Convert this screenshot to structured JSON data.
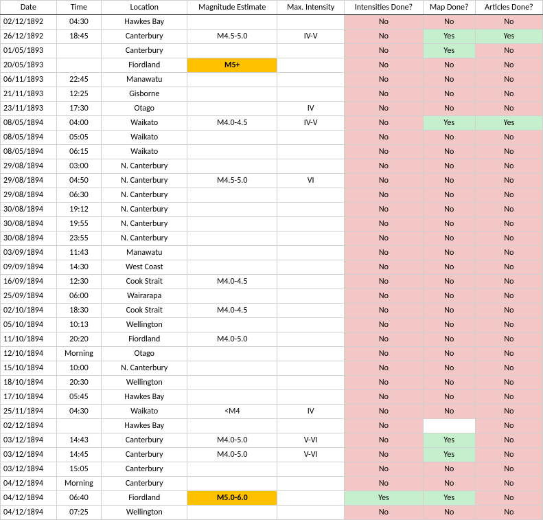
{
  "colors": {
    "no_bg": "#f4c7c7",
    "yes_bg": "#c6efce",
    "highlight_bg": "#ffc000",
    "grid": "#d0d0d0",
    "header_border": "#000000",
    "text": "#000000",
    "background": "#ffffff"
  },
  "headers": {
    "date": "Date",
    "time": "Time",
    "location": "Location",
    "magnitude": "Magnitude Estimate",
    "intensity": "Max. Intensity",
    "int_done": "Intensities Done?",
    "map_done": "Map Done?",
    "art_done": "Articles Done?"
  },
  "yes_label": "Yes",
  "no_label": "No",
  "rows": [
    {
      "date": "02/12/1892",
      "time": "04:30",
      "location": "Hawkes Bay",
      "mag": "",
      "mag_hl": false,
      "int": "",
      "int_done": "No",
      "map_done": "No",
      "art_done": "No",
      "sep": false
    },
    {
      "date": "26/12/1892",
      "time": "18:45",
      "location": "Canterbury",
      "mag": "M4.5-5.0",
      "mag_hl": false,
      "int": "IV-V",
      "int_done": "No",
      "map_done": "Yes",
      "art_done": "Yes",
      "sep": true
    },
    {
      "date": "01/05/1893",
      "time": "",
      "location": "Canterbury",
      "mag": "",
      "mag_hl": false,
      "int": "",
      "int_done": "No",
      "map_done": "Yes",
      "art_done": "No",
      "sep": false
    },
    {
      "date": "20/05/1893",
      "time": "",
      "location": "Fiordland",
      "mag": "M5+",
      "mag_hl": true,
      "int": "",
      "int_done": "No",
      "map_done": "No",
      "art_done": "No",
      "sep": true
    },
    {
      "date": "06/11/1893",
      "time": "22:45",
      "location": "Manawatu",
      "mag": "",
      "mag_hl": false,
      "int": "",
      "int_done": "No",
      "map_done": "No",
      "art_done": "No",
      "sep": false
    },
    {
      "date": "21/11/1893",
      "time": "12:25",
      "location": "Gisborne",
      "mag": "",
      "mag_hl": false,
      "int": "",
      "int_done": "No",
      "map_done": "No",
      "art_done": "No",
      "sep": false
    },
    {
      "date": "23/11/1893",
      "time": "17:30",
      "location": "Otago",
      "mag": "",
      "mag_hl": false,
      "int": "IV",
      "int_done": "No",
      "map_done": "No",
      "art_done": "No",
      "sep": true
    },
    {
      "date": "08/05/1894",
      "time": "04:00",
      "location": "Waikato",
      "mag": "M4.0-4.5",
      "mag_hl": false,
      "int": "IV-V",
      "int_done": "No",
      "map_done": "Yes",
      "art_done": "Yes",
      "sep": false
    },
    {
      "date": "08/05/1894",
      "time": "05:05",
      "location": "Waikato",
      "mag": "",
      "mag_hl": false,
      "int": "",
      "int_done": "No",
      "map_done": "No",
      "art_done": "No",
      "sep": false
    },
    {
      "date": "08/05/1894",
      "time": "06:15",
      "location": "Waikato",
      "mag": "",
      "mag_hl": false,
      "int": "",
      "int_done": "No",
      "map_done": "No",
      "art_done": "No",
      "sep": false
    },
    {
      "date": "29/08/1894",
      "time": "03:00",
      "location": "N. Canterbury",
      "mag": "",
      "mag_hl": false,
      "int": "",
      "int_done": "No",
      "map_done": "No",
      "art_done": "No",
      "sep": false
    },
    {
      "date": "29/08/1894",
      "time": "04:50",
      "location": "N. Canterbury",
      "mag": "M4.5-5.0",
      "mag_hl": false,
      "int": "VI",
      "int_done": "No",
      "map_done": "No",
      "art_done": "No",
      "sep": false
    },
    {
      "date": "29/08/1894",
      "time": "06:30",
      "location": "N. Canterbury",
      "mag": "",
      "mag_hl": false,
      "int": "",
      "int_done": "No",
      "map_done": "No",
      "art_done": "No",
      "sep": false
    },
    {
      "date": "30/08/1894",
      "time": "19:12",
      "location": "N. Canterbury",
      "mag": "",
      "mag_hl": false,
      "int": "",
      "int_done": "No",
      "map_done": "No",
      "art_done": "No",
      "sep": false
    },
    {
      "date": "30/08/1894",
      "time": "19:55",
      "location": "N. Canterbury",
      "mag": "",
      "mag_hl": false,
      "int": "",
      "int_done": "No",
      "map_done": "No",
      "art_done": "No",
      "sep": false
    },
    {
      "date": "30/08/1894",
      "time": "23:55",
      "location": "N. Canterbury",
      "mag": "",
      "mag_hl": false,
      "int": "",
      "int_done": "No",
      "map_done": "No",
      "art_done": "No",
      "sep": false
    },
    {
      "date": "03/09/1894",
      "time": "11:43",
      "location": "Manawatu",
      "mag": "",
      "mag_hl": false,
      "int": "",
      "int_done": "No",
      "map_done": "No",
      "art_done": "No",
      "sep": false
    },
    {
      "date": "09/09/1894",
      "time": "14:30",
      "location": "West Coast",
      "mag": "",
      "mag_hl": false,
      "int": "",
      "int_done": "No",
      "map_done": "No",
      "art_done": "No",
      "sep": false
    },
    {
      "date": "16/09/1894",
      "time": "12:30",
      "location": "Cook Strait",
      "mag": "M4.0-4.5",
      "mag_hl": false,
      "int": "",
      "int_done": "No",
      "map_done": "No",
      "art_done": "No",
      "sep": false
    },
    {
      "date": "25/09/1894",
      "time": "06:00",
      "location": "Wairarapa",
      "mag": "",
      "mag_hl": false,
      "int": "",
      "int_done": "No",
      "map_done": "No",
      "art_done": "No",
      "sep": false
    },
    {
      "date": "02/10/1894",
      "time": "18:30",
      "location": "Cook Strait",
      "mag": "M4.0-4.5",
      "mag_hl": false,
      "int": "",
      "int_done": "No",
      "map_done": "No",
      "art_done": "No",
      "sep": false
    },
    {
      "date": "05/10/1894",
      "time": "10:13",
      "location": "Wellington",
      "mag": "",
      "mag_hl": false,
      "int": "",
      "int_done": "No",
      "map_done": "No",
      "art_done": "No",
      "sep": false
    },
    {
      "date": "11/10/1894",
      "time": "20:20",
      "location": "Fiordland",
      "mag": "M4.0-5.0",
      "mag_hl": false,
      "int": "",
      "int_done": "No",
      "map_done": "No",
      "art_done": "No",
      "sep": false
    },
    {
      "date": "12/10/1894",
      "time": "Morning",
      "location": "Otago",
      "mag": "",
      "mag_hl": false,
      "int": "",
      "int_done": "No",
      "map_done": "No",
      "art_done": "No",
      "sep": false
    },
    {
      "date": "15/10/1894",
      "time": "10:00",
      "location": "N. Canterbury",
      "mag": "",
      "mag_hl": false,
      "int": "",
      "int_done": "No",
      "map_done": "No",
      "art_done": "No",
      "sep": false
    },
    {
      "date": "18/10/1894",
      "time": "20:30",
      "location": "Wellington",
      "mag": "",
      "mag_hl": false,
      "int": "",
      "int_done": "No",
      "map_done": "No",
      "art_done": "No",
      "sep": false
    },
    {
      "date": "17/10/1894",
      "time": "05:45",
      "location": "Hawkes Bay",
      "mag": "",
      "mag_hl": false,
      "int": "",
      "int_done": "No",
      "map_done": "No",
      "art_done": "No",
      "sep": false
    },
    {
      "date": "25/11/1894",
      "time": "04:30",
      "location": "Waikato",
      "mag": "<M4",
      "mag_hl": false,
      "int": "IV",
      "int_done": "No",
      "map_done": "No",
      "art_done": "No",
      "sep": false
    },
    {
      "date": "02/12/1894",
      "time": "",
      "location": "Hawkes Bay",
      "mag": "",
      "mag_hl": false,
      "int": "",
      "int_done": "No",
      "map_done": "",
      "art_done": "No",
      "sep": false
    },
    {
      "date": "03/12/1894",
      "time": "14:43",
      "location": "Canterbury",
      "mag": "M4.0-5.0",
      "mag_hl": false,
      "int": "V-VI",
      "int_done": "No",
      "map_done": "Yes",
      "art_done": "No",
      "sep": false
    },
    {
      "date": "03/12/1894",
      "time": "14:45",
      "location": "Canterbury",
      "mag": "M4.0-5.0",
      "mag_hl": false,
      "int": "V-VI",
      "int_done": "No",
      "map_done": "Yes",
      "art_done": "No",
      "sep": false
    },
    {
      "date": "03/12/1894",
      "time": "15:05",
      "location": "Canterbury",
      "mag": "",
      "mag_hl": false,
      "int": "",
      "int_done": "No",
      "map_done": "No",
      "art_done": "No",
      "sep": false
    },
    {
      "date": "04/12/1894",
      "time": "Morning",
      "location": "Canterbury",
      "mag": "",
      "mag_hl": false,
      "int": "",
      "int_done": "No",
      "map_done": "No",
      "art_done": "No",
      "sep": false
    },
    {
      "date": "04/12/1894",
      "time": "06:40",
      "location": "Fiordland",
      "mag": "M5.0-6.0",
      "mag_hl": true,
      "int": "",
      "int_done": "Yes",
      "map_done": "Yes",
      "art_done": "No",
      "sep": false
    },
    {
      "date": "04/12/1894",
      "time": "07:25",
      "location": "Wellington",
      "mag": "",
      "mag_hl": false,
      "int": "",
      "int_done": "No",
      "map_done": "No",
      "art_done": "No",
      "sep": false
    }
  ]
}
